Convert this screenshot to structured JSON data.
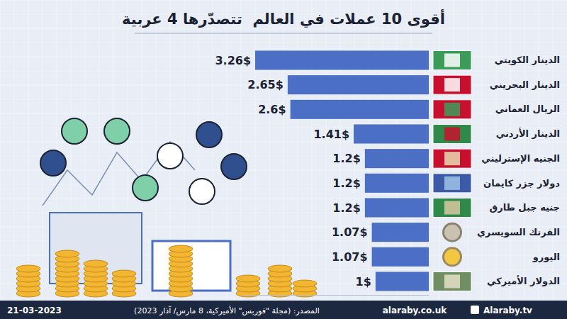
{
  "chart_data": {
    "type": "bar",
    "orientation": "horizontal",
    "title": "أقوى 10 عملات في العالم  تتصدّرها 4 عربية",
    "categories": [
      "الدينار الكويتي",
      "الدينار البحريني",
      "الريال العماني",
      "الدينار الأردني",
      "الجنيه الإسترليني",
      "دولار جزر كايمان",
      "جنيه جبل طارق",
      "الفرنك السويسري",
      "اليورو",
      "الدولار الأميركي"
    ],
    "values": [
      3.26,
      2.65,
      2.6,
      1.41,
      1.2,
      1.2,
      1.2,
      1.07,
      1.07,
      1
    ],
    "value_labels": [
      "3.26$",
      "2.65$",
      "2.6$",
      "1.41$",
      "1.2$",
      "1.2$",
      "1.2$",
      "1.07$",
      "1.07$",
      "1$"
    ],
    "data_labels": true,
    "color": "#4a6fc4",
    "xlim": [
      0,
      3.5
    ],
    "tick_labels": "y",
    "grid": false,
    "source": "المصدر: (مجلة \"فوربس\" الأميركية، 8 مارس/ آذار 2023)",
    "date": "21-03-2023",
    "website": "alaraby.co.uk",
    "social": "Alaraby.tv"
  }
}
